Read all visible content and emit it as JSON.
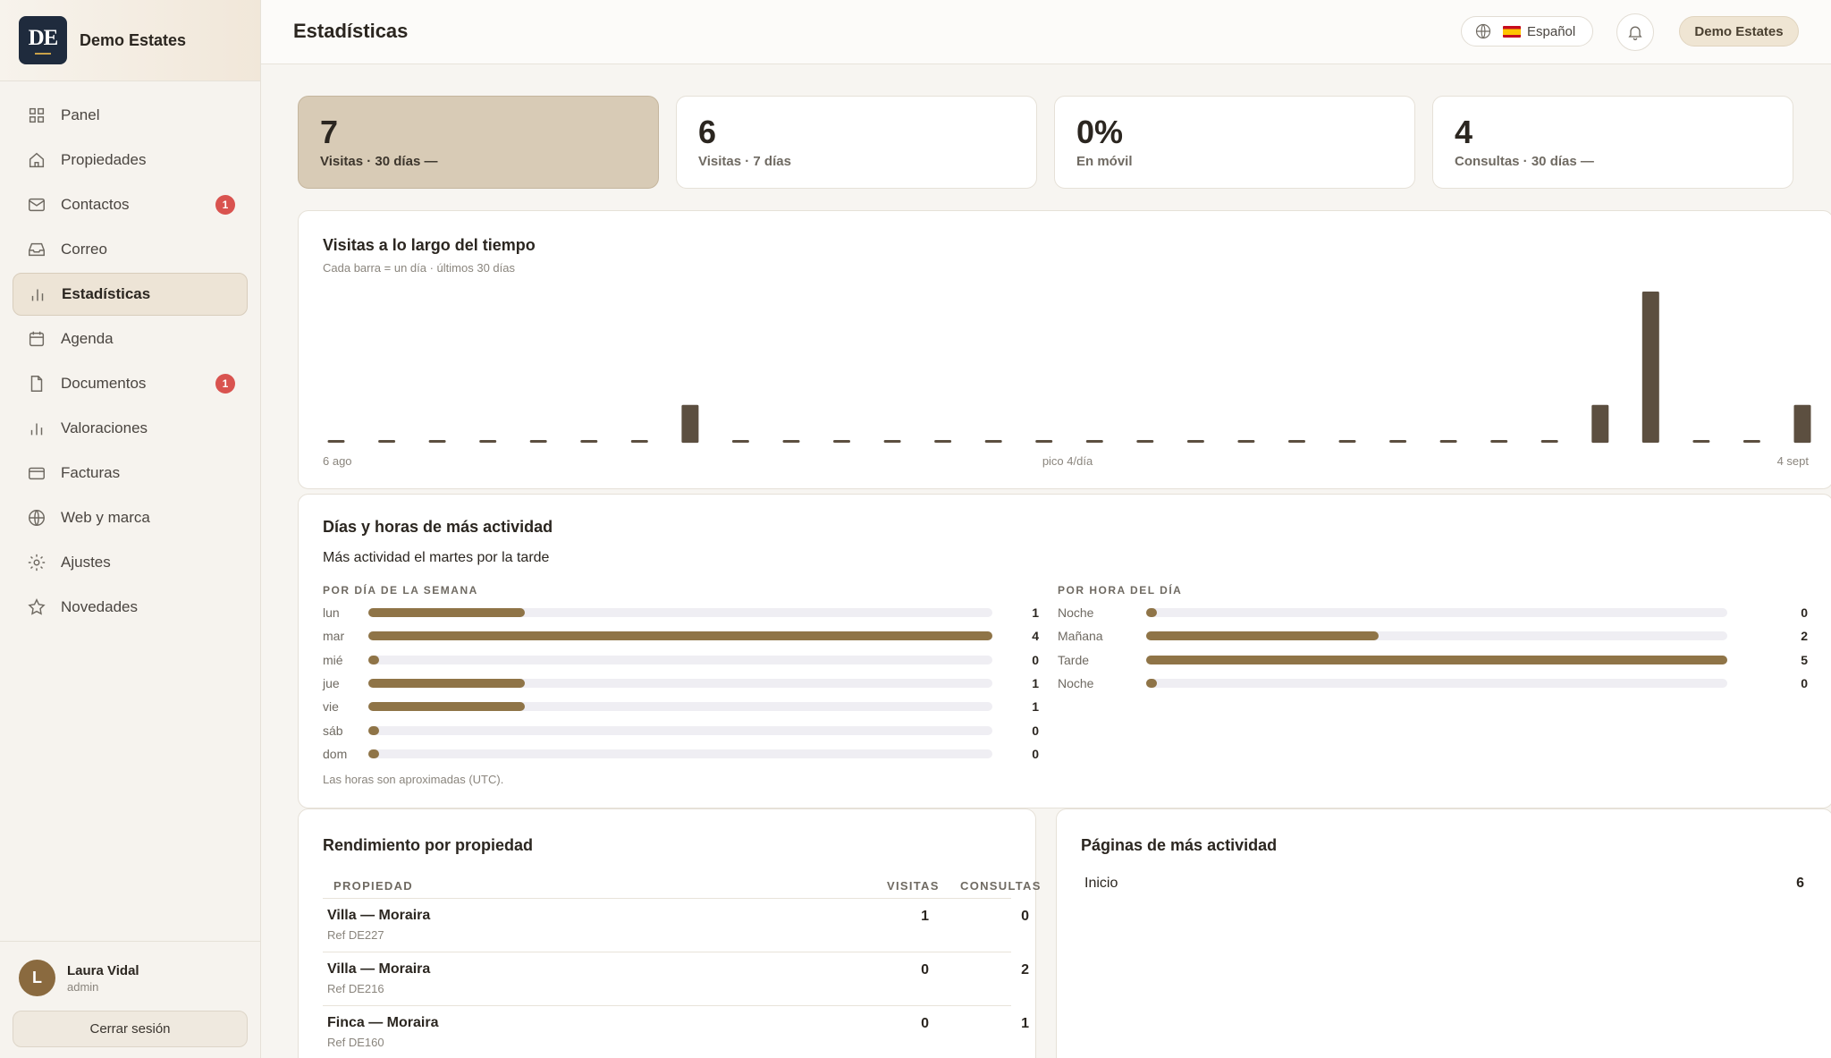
{
  "app": {
    "brand_initials": "DE",
    "brand_name": "Demo Estates"
  },
  "sidebar": {
    "items": [
      {
        "label": "Panel",
        "icon": "grid-icon",
        "active": false,
        "badge": ""
      },
      {
        "label": "Propiedades",
        "icon": "home-icon",
        "active": false,
        "badge": ""
      },
      {
        "label": "Contactos",
        "icon": "mail-icon",
        "active": false,
        "badge": "1"
      },
      {
        "label": "Correo",
        "icon": "inbox-icon",
        "active": false,
        "badge": ""
      },
      {
        "label": "Estadísticas",
        "icon": "bar-chart-icon",
        "active": true,
        "badge": ""
      },
      {
        "label": "Agenda",
        "icon": "calendar-icon",
        "active": false,
        "badge": ""
      },
      {
        "label": "Documentos",
        "icon": "file-icon",
        "active": false,
        "badge": "1"
      },
      {
        "label": "Valoraciones",
        "icon": "bar-chart-icon",
        "active": false,
        "badge": ""
      },
      {
        "label": "Facturas",
        "icon": "credit-card-icon",
        "active": false,
        "badge": ""
      },
      {
        "label": "Web y marca",
        "icon": "globe-icon",
        "active": false,
        "badge": ""
      },
      {
        "label": "Ajustes",
        "icon": "gear-icon",
        "active": false,
        "badge": ""
      },
      {
        "label": "Novedades",
        "icon": "star-icon",
        "active": false,
        "badge": ""
      }
    ],
    "user": {
      "initial": "L",
      "name": "Laura Vidal",
      "role": "admin"
    },
    "logout_label": "Cerrar sesión"
  },
  "header": {
    "title": "Estadísticas",
    "language_label": "Español",
    "account_label": "Demo Estates"
  },
  "kpis": [
    {
      "value": "7",
      "label": "Visitas · 30 días  —",
      "active": true
    },
    {
      "value": "6",
      "label": "Visitas · 7 días",
      "active": false
    },
    {
      "value": "0%",
      "label": "En móvil",
      "active": false
    },
    {
      "value": "4",
      "label": "Consultas · 30 días  —",
      "active": false
    }
  ],
  "visits_chart": {
    "title": "Visitas a lo largo del tiempo",
    "subtitle": "Cada barra = un día · últimos 30 días",
    "x_start_label": "6 ago",
    "peak_label": "pico 4/día",
    "x_end_label": "4 sept"
  },
  "chart_data": {
    "type": "bar",
    "values": [
      0,
      0,
      0,
      0,
      0,
      0,
      0,
      1,
      0,
      0,
      0,
      0,
      0,
      0,
      0,
      0,
      0,
      0,
      0,
      0,
      0,
      0,
      0,
      0,
      0,
      1,
      4,
      0,
      0,
      1
    ],
    "ylim": [
      0,
      4
    ],
    "colors": {
      "bar": "#5c4f40",
      "zero": "#5c4f40"
    }
  },
  "activity": {
    "title": "Días y horas de más actividad",
    "summary": "Más actividad el martes por la tarde",
    "by_day_header": "POR DÍA DE LA SEMANA",
    "by_hour_header": "POR HORA DEL DÍA",
    "footnote": "Las horas son aproximadas (UTC).",
    "days": [
      {
        "label": "lun",
        "value": "1",
        "fraction": 0.25
      },
      {
        "label": "mar",
        "value": "4",
        "fraction": 1.0
      },
      {
        "label": "mié",
        "value": "0",
        "fraction": 0.0
      },
      {
        "label": "jue",
        "value": "1",
        "fraction": 0.25
      },
      {
        "label": "vie",
        "value": "1",
        "fraction": 0.25
      },
      {
        "label": "sáb",
        "value": "0",
        "fraction": 0.0
      },
      {
        "label": "dom",
        "value": "0",
        "fraction": 0.0
      }
    ],
    "hours": [
      {
        "label": "Noche",
        "value": "0",
        "fraction": 0.0
      },
      {
        "label": "Mañana",
        "value": "2",
        "fraction": 0.4
      },
      {
        "label": "Tarde",
        "value": "5",
        "fraction": 1.0
      },
      {
        "label": "Noche",
        "value": "0",
        "fraction": 0.0
      }
    ],
    "bar_color": "#8f7447"
  },
  "performance": {
    "title": "Rendimiento por propiedad",
    "col_property": "PROPIEDAD",
    "col_visits": "VISITAS",
    "col_inquiries": "CONSULTAS",
    "rows": [
      {
        "name": "Villa — Moraira",
        "ref": "Ref DE227",
        "visits": "1",
        "inquiries": "0"
      },
      {
        "name": "Villa — Moraira",
        "ref": "Ref DE216",
        "visits": "0",
        "inquiries": "2"
      },
      {
        "name": "Finca — Moraira",
        "ref": "Ref DE160",
        "visits": "0",
        "inquiries": "1"
      }
    ]
  },
  "top_pages": {
    "title": "Páginas de más actividad",
    "rows": [
      {
        "name": "Inicio",
        "value": "6"
      }
    ]
  }
}
